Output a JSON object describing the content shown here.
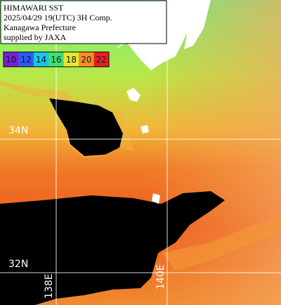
{
  "header": {
    "lines": [
      "HIMAWARI SST",
      "2025/04/29 19(UTC) 3H Comp.",
      "Kanagawa Prefecture",
      "supplied by JAXA"
    ]
  },
  "legend": {
    "labels": [
      10,
      12,
      14,
      16,
      18,
      20,
      22
    ],
    "colors": [
      "#7a1fd0",
      "#2a5cf0",
      "#18c8e0",
      "#40e070",
      "#e8e830",
      "#f89020",
      "#e82020"
    ]
  },
  "grid_labels": {
    "lat": [
      "34N",
      "32N"
    ],
    "lon": [
      "138E",
      "140E"
    ]
  }
}
